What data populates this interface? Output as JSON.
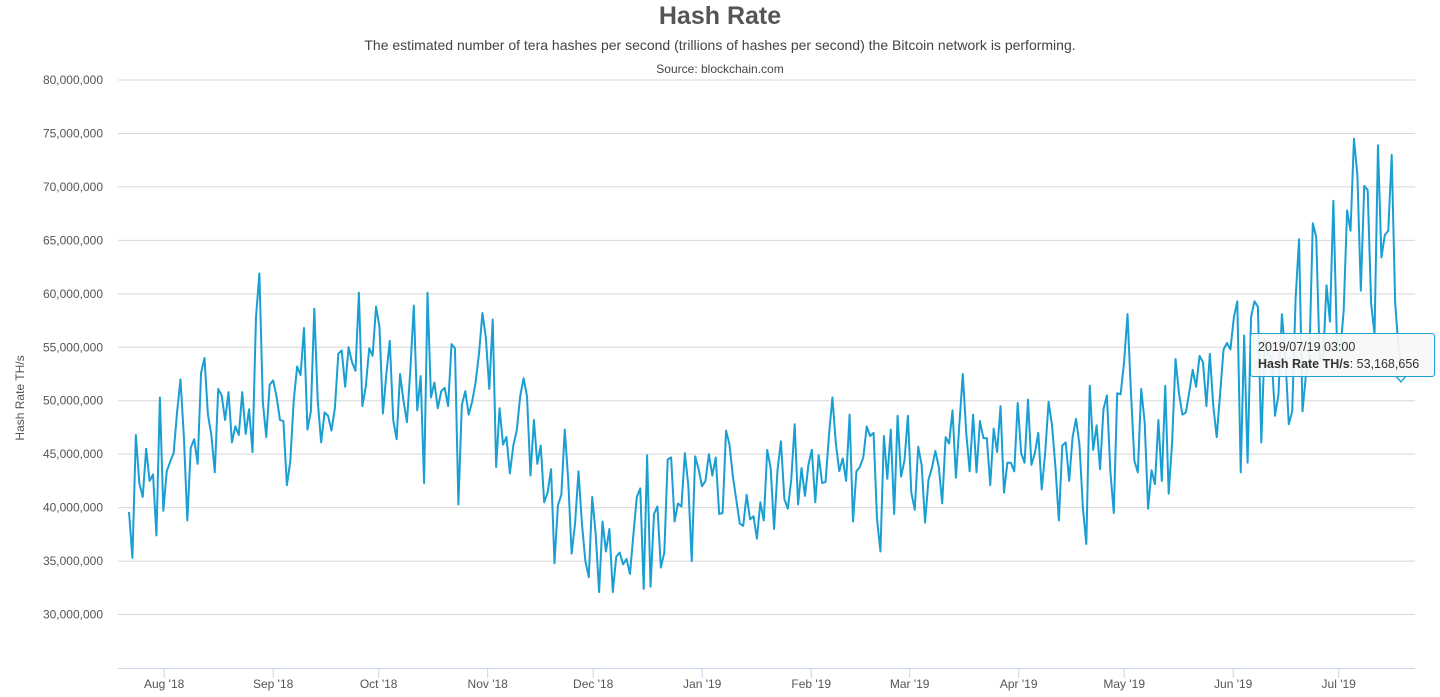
{
  "header": {
    "title": "Hash Rate",
    "subtitle": "The estimated number of tera hashes per second (trillions of hashes per second) the Bitcoin network is performing.",
    "source": "Source: blockchain.com"
  },
  "tooltip": {
    "date": "2019/07/19 03:00",
    "label": "Hash Rate TH/s",
    "value": "53,168,656"
  },
  "colors": {
    "line": "#1a9fd3",
    "grid": "#d8d8d8",
    "axis_text": "#555555",
    "x_axis": "#c7d4ea"
  },
  "chart_data": {
    "type": "line",
    "title": "Hash Rate",
    "ylabel": "Hash Rate TH/s",
    "xlabel": "",
    "ylim": [
      25000000,
      80000000
    ],
    "y_ticks": [
      "30,000,000",
      "35,000,000",
      "40,000,000",
      "45,000,000",
      "50,000,000",
      "55,000,000",
      "60,000,000",
      "65,000,000",
      "70,000,000",
      "75,000,000",
      "80,000,000"
    ],
    "y_tick_values": [
      30000000,
      35000000,
      40000000,
      45000000,
      50000000,
      55000000,
      60000000,
      65000000,
      70000000,
      75000000,
      80000000
    ],
    "x_start": "2018/07/22",
    "x_end": "2019/07/19",
    "x_ticks": [
      {
        "label": "Aug '18",
        "date": "2018/08/01"
      },
      {
        "label": "Sep '18",
        "date": "2018/09/01"
      },
      {
        "label": "Oct '18",
        "date": "2018/10/01"
      },
      {
        "label": "Nov '18",
        "date": "2018/11/01"
      },
      {
        "label": "Dec '18",
        "date": "2018/12/01"
      },
      {
        "label": "Jan '19",
        "date": "2019/01/01"
      },
      {
        "label": "Feb '19",
        "date": "2019/02/01"
      },
      {
        "label": "Mar '19",
        "date": "2019/03/01"
      },
      {
        "label": "Apr '19",
        "date": "2019/04/01"
      },
      {
        "label": "May '19",
        "date": "2019/05/01"
      },
      {
        "label": "Jun '19",
        "date": "2019/06/01"
      },
      {
        "label": "Jul '19",
        "date": "2019/07/01"
      }
    ],
    "series": [
      {
        "name": "Hash Rate TH/s",
        "values": [
          39600000,
          35300000,
          46800000,
          42300000,
          41000000,
          45500000,
          42500000,
          43100000,
          37400000,
          50300000,
          39700000,
          43400000,
          44300000,
          45100000,
          48900000,
          52000000,
          46600000,
          38800000,
          45600000,
          46400000,
          44100000,
          52600000,
          54000000,
          48700000,
          46800000,
          43300000,
          51100000,
          50500000,
          48200000,
          50800000,
          46100000,
          47600000,
          46800000,
          50800000,
          46900000,
          49200000,
          45200000,
          57800000,
          61900000,
          49900000,
          46600000,
          51500000,
          51900000,
          50400000,
          48200000,
          48100000,
          42100000,
          44300000,
          50000000,
          53200000,
          52400000,
          56800000,
          47300000,
          49000000,
          58600000,
          50000000,
          46100000,
          48900000,
          48600000,
          47200000,
          49300000,
          54400000,
          54700000,
          51300000,
          55000000,
          53600000,
          52800000,
          60100000,
          49500000,
          51300000,
          54900000,
          54200000,
          58800000,
          56900000,
          48800000,
          52500000,
          55600000,
          48200000,
          46400000,
          52500000,
          50000000,
          48000000,
          52900000,
          58900000,
          49100000,
          52300000,
          42300000,
          60100000,
          50300000,
          51700000,
          49300000,
          50900000,
          51200000,
          49500000,
          55300000,
          54900000,
          40300000,
          49600000,
          50900000,
          48700000,
          49900000,
          51700000,
          54400000,
          58200000,
          55900000,
          51100000,
          57600000,
          43800000,
          49300000,
          45900000,
          46600000,
          43200000,
          45800000,
          47200000,
          50400000,
          52100000,
          50400000,
          43000000,
          48200000,
          44100000,
          45800000,
          40500000,
          41400000,
          43600000,
          34800000,
          40200000,
          41200000,
          47300000,
          42600000,
          35700000,
          38500000,
          43400000,
          38500000,
          35000000,
          33500000,
          41000000,
          37600000,
          32100000,
          38700000,
          35900000,
          38000000,
          32100000,
          35400000,
          35800000,
          34700000,
          35200000,
          33800000,
          37500000,
          41000000,
          41800000,
          32400000,
          44900000,
          32600000,
          39400000,
          40100000,
          34400000,
          35800000,
          44500000,
          44700000,
          38700000,
          40400000,
          40100000,
          45100000,
          42100000,
          35000000,
          44800000,
          43600000,
          42000000,
          42500000,
          45000000,
          43000000,
          44700000,
          39400000,
          39500000,
          47200000,
          45900000,
          42900000,
          40700000,
          38500000,
          38300000,
          41200000,
          38900000,
          39200000,
          37100000,
          40500000,
          38800000,
          45400000,
          43700000,
          38000000,
          43500000,
          46200000,
          40800000,
          39900000,
          42600000,
          47800000,
          40300000,
          43700000,
          41100000,
          44000000,
          45400000,
          40500000,
          44900000,
          42300000,
          42400000,
          46800000,
          50300000,
          46000000,
          43400000,
          44600000,
          42500000,
          48700000,
          38700000,
          43400000,
          43800000,
          44700000,
          47600000,
          46700000,
          47000000,
          38900000,
          35900000,
          46700000,
          42700000,
          47300000,
          39400000,
          48600000,
          42900000,
          44400000,
          48600000,
          41400000,
          39800000,
          45700000,
          44000000,
          38600000,
          42600000,
          43700000,
          45300000,
          43800000,
          40400000,
          46600000,
          46000000,
          49100000,
          42800000,
          47800000,
          52500000,
          47000000,
          43400000,
          48700000,
          43300000,
          48100000,
          46500000,
          46500000,
          42100000,
          47400000,
          45200000,
          49500000,
          41400000,
          44200000,
          44200000,
          43400000,
          49800000,
          45100000,
          44200000,
          50100000,
          44000000,
          45100000,
          47000000,
          41700000,
          45100000,
          49900000,
          47700000,
          43800000,
          38800000,
          45800000,
          46100000,
          42500000,
          46600000,
          48300000,
          45900000,
          40000000,
          36600000,
          51400000,
          45400000,
          47700000,
          43600000,
          49200000,
          50500000,
          43400000,
          39500000,
          50700000,
          50600000,
          53600000,
          58100000,
          50800000,
          44400000,
          43300000,
          51100000,
          48000000,
          39900000,
          43500000,
          42200000,
          48200000,
          42500000,
          51400000,
          41300000,
          46100000,
          53900000,
          50700000,
          48700000,
          48900000,
          50800000,
          52900000,
          51300000,
          54200000,
          53600000,
          49500000,
          54400000,
          49500000,
          46600000,
          50700000,
          54800000,
          55400000,
          54800000,
          57800000,
          59300000,
          43300000,
          56100000,
          44200000,
          57800000,
          59300000,
          58800000,
          46100000,
          55800000,
          54300000,
          54100000,
          48600000,
          50600000,
          58100000,
          54200000,
          47800000,
          49000000,
          59600000,
          65100000,
          49000000,
          52400000,
          54000000,
          66600000,
          65300000,
          54000000,
          53800000,
          60800000,
          57400000,
          68700000,
          55900000,
          54600000,
          58400000,
          67800000,
          65900000,
          74500000,
          71100000,
          60300000,
          70100000,
          69700000,
          59100000,
          56200000,
          73900000,
          63400000,
          65500000,
          65900000,
          73000000,
          59200000,
          54800000,
          53168656
        ]
      }
    ]
  }
}
